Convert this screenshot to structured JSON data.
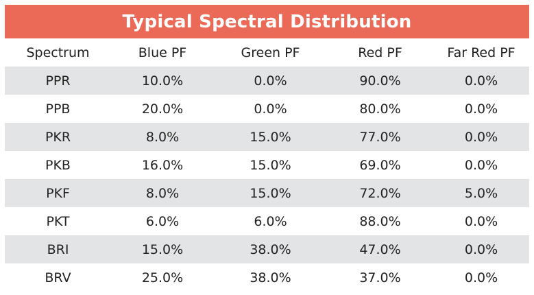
{
  "title": "Typical Spectral Distribution",
  "colors": {
    "title_bg": "#ea6a57",
    "title_text": "#ffffff",
    "stripe": "#e3e4e5"
  },
  "columns": [
    "Spectrum",
    "Blue PF",
    "Green PF",
    "Red PF",
    "Far Red PF"
  ],
  "rows": [
    [
      "PPR",
      "10.0%",
      "0.0%",
      "90.0%",
      "0.0%"
    ],
    [
      "PPB",
      "20.0%",
      "0.0%",
      "80.0%",
      "0.0%"
    ],
    [
      "PKR",
      "8.0%",
      "15.0%",
      "77.0%",
      "0.0%"
    ],
    [
      "PKB",
      "16.0%",
      "15.0%",
      "69.0%",
      "0.0%"
    ],
    [
      "PKF",
      "8.0%",
      "15.0%",
      "72.0%",
      "5.0%"
    ],
    [
      "PKT",
      "6.0%",
      "6.0%",
      "88.0%",
      "0.0%"
    ],
    [
      "BRI",
      "15.0%",
      "38.0%",
      "47.0%",
      "0.0%"
    ],
    [
      "BRV",
      "25.0%",
      "38.0%",
      "37.0%",
      "0.0%"
    ]
  ]
}
